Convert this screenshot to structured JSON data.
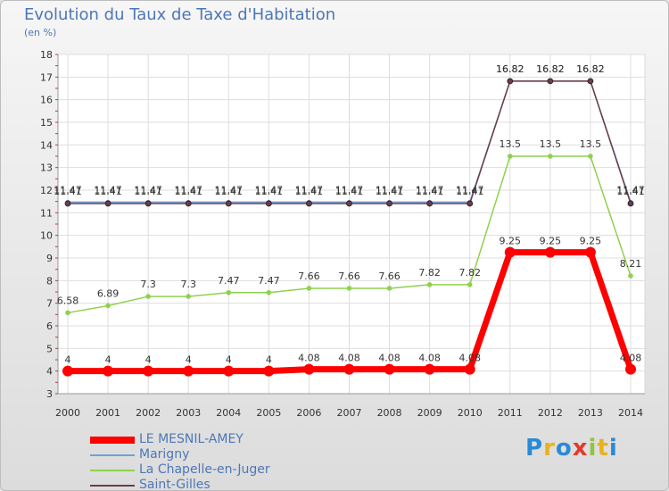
{
  "header": {
    "title": "Evolution du Taux de Taxe d'Habitation",
    "unit": "(en %)"
  },
  "logo_text": "Proxiti",
  "chart_data": {
    "type": "line",
    "title": "Evolution du Taux de Taxe d'Habitation",
    "subtitle": "(en %)",
    "xlabel": "",
    "ylabel": "",
    "x": [
      "2000",
      "2001",
      "2002",
      "2003",
      "2004",
      "2005",
      "2006",
      "2007",
      "2008",
      "2009",
      "2010",
      "2011",
      "2012",
      "2013",
      "2014"
    ],
    "ylim": [
      3,
      18
    ],
    "yticks": [
      3,
      4,
      5,
      6,
      7,
      8,
      9,
      10,
      11,
      12,
      13,
      14,
      15,
      16,
      17,
      18
    ],
    "grid": true,
    "legend_position": "bottom-left",
    "series": [
      {
        "name": "LE MESNIL-AMEY",
        "color": "#ff0000",
        "values": [
          4,
          4,
          4,
          4,
          4,
          4,
          4.08,
          4.08,
          4.08,
          4.08,
          4.08,
          9.25,
          9.25,
          9.25,
          4.08
        ],
        "labels": [
          "4",
          "4",
          "4",
          "4",
          "4",
          "4",
          "4.08",
          "4.08",
          "4.08",
          "4.08",
          "4.08",
          "9.25",
          "9.25",
          "9.25",
          "4.08"
        ]
      },
      {
        "name": "Marigny",
        "color": "#6f9fd8",
        "values": [
          11.47,
          11.47,
          11.47,
          11.47,
          11.47,
          11.47,
          11.47,
          11.47,
          11.47,
          11.47,
          11.47,
          16.82,
          16.82,
          16.82,
          11.47
        ],
        "labels": [
          "11.47",
          "11.47",
          "11.47",
          "11.47",
          "11.47",
          "11.47",
          "11.47",
          "11.47",
          "11.47",
          "11.47",
          "11.47",
          "16.82",
          "16.82",
          "16.82",
          "11.47"
        ]
      },
      {
        "name": "La Chapelle-en-Juger",
        "color": "#8fd14f",
        "values": [
          6.58,
          6.89,
          7.3,
          7.3,
          7.47,
          7.47,
          7.66,
          7.66,
          7.66,
          7.82,
          7.82,
          13.5,
          13.5,
          13.5,
          8.21
        ],
        "labels": [
          "6.58",
          "6.89",
          "7.3",
          "7.3",
          "7.47",
          "7.47",
          "7.66",
          "7.66",
          "7.66",
          "7.82",
          "7.82",
          "13.5",
          "13.5",
          "13.5",
          "8.21"
        ]
      },
      {
        "name": "Saint-Gilles",
        "color": "#6b3d4a",
        "values": [
          11.41,
          11.41,
          11.41,
          11.41,
          11.41,
          11.41,
          11.41,
          11.41,
          11.41,
          11.41,
          11.41,
          16.82,
          16.82,
          16.82,
          11.41
        ],
        "labels": [
          "11.41",
          "11.41",
          "11.41",
          "11.41",
          "11.41",
          "11.41",
          "11.41",
          "11.41",
          "11.41",
          "11.41",
          "11.41",
          "16.82",
          "16.82",
          "16.82",
          "11.41"
        ]
      }
    ]
  }
}
